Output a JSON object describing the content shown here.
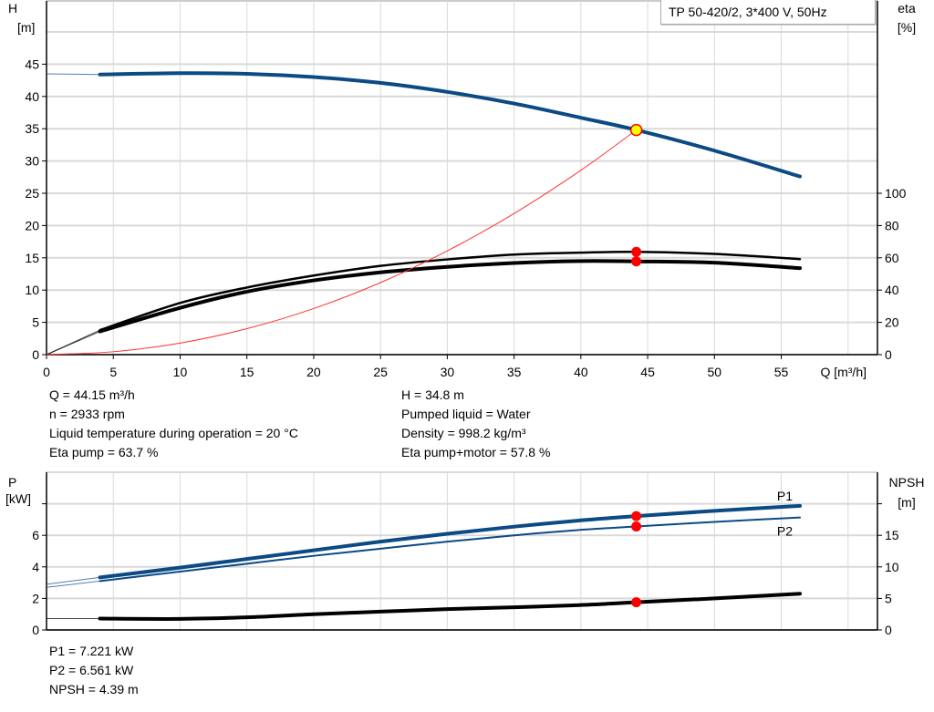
{
  "legend": "TP 50-420/2, 3*400 V, 50Hz",
  "colors": {
    "head": "#0b4a84",
    "eta": "#000000",
    "system": "#ff3333",
    "marker": "#ff0000",
    "duty_point": "#ffff00",
    "p": "#0b4a84",
    "npsh": "#000000",
    "grid": "#d9d9d9"
  },
  "chart_data": [
    {
      "type": "line",
      "xlabel": "Q [m³/h]",
      "ylabel": "H\n[m]",
      "ylabel_parts": [
        "H",
        "[m]"
      ],
      "y2label_parts": [
        "eta",
        "[%]"
      ],
      "xlim": [
        0,
        62.2
      ],
      "ylim": [
        0,
        54.8
      ],
      "y2lim": [
        0,
        219.2
      ],
      "xticks": [
        0,
        5,
        10,
        15,
        20,
        25,
        30,
        35,
        40,
        45,
        50,
        55
      ],
      "yticks": [
        0,
        5,
        10,
        15,
        20,
        25,
        30,
        35,
        40,
        45
      ],
      "y2ticks": [
        0,
        20,
        40,
        60,
        80,
        100
      ],
      "grid": true,
      "series": [
        {
          "key": "head",
          "axis": "left",
          "x": [
            0,
            4,
            10,
            15,
            20,
            25,
            30,
            35,
            40,
            44.15,
            50,
            56.4
          ],
          "y": [
            43.5,
            43.4,
            43.6,
            43.5,
            43.0,
            42.1,
            40.7,
            38.9,
            36.7,
            34.8,
            31.6,
            27.6
          ]
        },
        {
          "key": "eta_pump",
          "axis": "right",
          "x": [
            0,
            4,
            10,
            15,
            20,
            25,
            30,
            35,
            40,
            44.15,
            50,
            56.4
          ],
          "y": [
            0,
            15.2,
            32,
            41.6,
            49,
            55,
            59,
            62,
            63.2,
            63.7,
            62.4,
            59.2
          ]
        },
        {
          "key": "eta_pump_motor",
          "axis": "right",
          "x": [
            0,
            4,
            10,
            15,
            20,
            25,
            30,
            35,
            40,
            44.15,
            50,
            56.4
          ],
          "y": [
            0,
            14.4,
            29,
            39,
            46,
            51,
            54.4,
            56.8,
            58,
            57.8,
            57,
            53.6
          ]
        },
        {
          "key": "system",
          "axis": "left",
          "x": [
            0,
            5,
            10,
            15,
            20,
            25,
            30,
            35,
            40,
            44.15
          ],
          "y": [
            0,
            0.45,
            1.79,
            4.02,
            7.14,
            11.16,
            16.07,
            21.87,
            28.56,
            34.8
          ]
        }
      ],
      "markers": [
        {
          "axis": "left",
          "x": 44.15,
          "y": 34.8,
          "kind": "duty"
        },
        {
          "axis": "right",
          "x": 44.15,
          "y": 63.7,
          "kind": "point"
        },
        {
          "axis": "right",
          "x": 44.15,
          "y": 57.8,
          "kind": "point"
        }
      ]
    },
    {
      "type": "line",
      "ylabel_parts": [
        "P",
        "[kW]"
      ],
      "y2label_parts": [
        "NPSH",
        "[m]"
      ],
      "xlim": [
        0,
        62.2
      ],
      "ylim": [
        0,
        10
      ],
      "y2lim": [
        0,
        25
      ],
      "yticks": [
        0,
        2,
        4,
        6,
        8
      ],
      "ytick_labels": [
        "0",
        "2",
        "4",
        "6",
        ""
      ],
      "y2ticks": [
        0,
        5,
        10,
        15,
        20
      ],
      "y2tick_labels": [
        "0",
        "5",
        "10",
        "15",
        ""
      ],
      "grid": true,
      "series": [
        {
          "key": "p1",
          "name": "P1",
          "axis": "left",
          "x": [
            0,
            4,
            10,
            15,
            20,
            25,
            30,
            35,
            40,
            44.15,
            50,
            56.4
          ],
          "y": [
            2.9,
            3.33,
            3.95,
            4.5,
            5.05,
            5.6,
            6.1,
            6.55,
            6.95,
            7.221,
            7.55,
            7.87
          ]
        },
        {
          "key": "p2",
          "name": "P2",
          "axis": "left",
          "x": [
            0,
            4,
            10,
            15,
            20,
            25,
            30,
            35,
            40,
            44.15,
            50,
            56.4
          ],
          "y": [
            2.7,
            3.1,
            3.7,
            4.2,
            4.7,
            5.15,
            5.6,
            6.0,
            6.35,
            6.561,
            6.85,
            7.13
          ]
        },
        {
          "key": "npsh",
          "axis": "right",
          "x": [
            0,
            4,
            10,
            15,
            20,
            25,
            30,
            35,
            40,
            44.15,
            50,
            56.4
          ],
          "y": [
            1.8,
            1.8,
            1.75,
            2.0,
            2.5,
            2.9,
            3.3,
            3.6,
            3.95,
            4.39,
            5.0,
            5.75
          ]
        }
      ],
      "markers": [
        {
          "axis": "left",
          "x": 44.15,
          "y": 7.221,
          "kind": "point"
        },
        {
          "axis": "left",
          "x": 44.15,
          "y": 6.561,
          "kind": "point"
        },
        {
          "axis": "right",
          "x": 44.15,
          "y": 4.39,
          "kind": "point"
        }
      ]
    }
  ],
  "info_top": {
    "left": [
      "Q = 44.15 m³/h",
      "n = 2933 rpm",
      "Liquid temperature during operation = 20 °C",
      "Eta pump = 63.7 %"
    ],
    "right": [
      "H = 34.8 m",
      "Pumped liquid = Water",
      "Density = 998.2 kg/m³",
      "Eta pump+motor = 57.8 %"
    ]
  },
  "info_bottom": [
    "P1 = 7.221 kW",
    "P2 = 6.561 kW",
    "NPSH = 4.39 m"
  ]
}
